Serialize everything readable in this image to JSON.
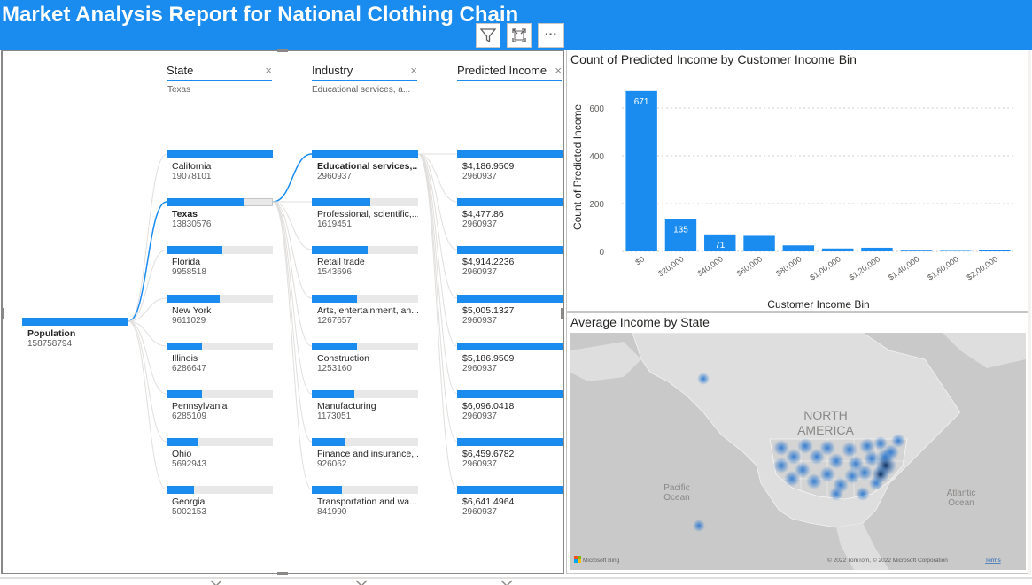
{
  "report": {
    "title": "Market Analysis Report for National Clothing Chain"
  },
  "toolbar": {
    "filter_icon": "filter-icon",
    "focus_icon": "focus-mode-icon",
    "more_icon": "more-options-icon",
    "more_label": "···"
  },
  "tree": {
    "root": {
      "label": "Population",
      "value": "158758794"
    },
    "levels": [
      {
        "header": "State",
        "filter": "Texas",
        "close": "×"
      },
      {
        "header": "Industry",
        "filter": "Educational services, a...",
        "close": "×"
      },
      {
        "header": "Predicted Income",
        "filter": "",
        "close": "×"
      }
    ],
    "state_nodes": [
      {
        "label": "California",
        "value": "19078101",
        "fill": 1.0
      },
      {
        "label": "Texas",
        "value": "13830576",
        "fill": 0.725,
        "selected": true
      },
      {
        "label": "Florida",
        "value": "9958518",
        "fill": 0.522
      },
      {
        "label": "New York",
        "value": "9611029",
        "fill": 0.504
      },
      {
        "label": "Illinois",
        "value": "6286647",
        "fill": 0.33
      },
      {
        "label": "Pennsylvania",
        "value": "6285109",
        "fill": 0.33
      },
      {
        "label": "Ohio",
        "value": "5692943",
        "fill": 0.298
      },
      {
        "label": "Georgia",
        "value": "5002153",
        "fill": 0.262
      }
    ],
    "industry_nodes": [
      {
        "label": "Educational services,...",
        "value": "2960937",
        "fill": 1.0,
        "selected": true
      },
      {
        "label": "Professional, scientific,...",
        "value": "1619451",
        "fill": 0.547
      },
      {
        "label": "Retail trade",
        "value": "1543696",
        "fill": 0.521
      },
      {
        "label": "Arts, entertainment, an...",
        "value": "1267657",
        "fill": 0.428
      },
      {
        "label": "Construction",
        "value": "1253160",
        "fill": 0.423
      },
      {
        "label": "Manufacturing",
        "value": "1173051",
        "fill": 0.396
      },
      {
        "label": "Finance and insurance,...",
        "value": "926062",
        "fill": 0.313
      },
      {
        "label": "Transportation and wa...",
        "value": "841990",
        "fill": 0.284
      }
    ],
    "income_nodes": [
      {
        "label": "$4,186.9509",
        "value": "2960937",
        "fill": 1.0
      },
      {
        "label": "$4,477.86",
        "value": "2960937",
        "fill": 1.0
      },
      {
        "label": "$4,914.2236",
        "value": "2960937",
        "fill": 1.0
      },
      {
        "label": "$5,005.1327",
        "value": "2960937",
        "fill": 1.0
      },
      {
        "label": "$5,186.9509",
        "value": "2960937",
        "fill": 1.0
      },
      {
        "label": "$6,096.0418",
        "value": "2960937",
        "fill": 1.0
      },
      {
        "label": "$6,459.6782",
        "value": "2960937",
        "fill": 1.0
      },
      {
        "label": "$6,641.4964",
        "value": "2960937",
        "fill": 1.0
      }
    ]
  },
  "chart_data": {
    "type": "bar",
    "title": "Count of Predicted Income by Customer Income Bin",
    "xlabel": "Customer Income Bin",
    "ylabel": "Count of Predicted Income",
    "categories": [
      "$0",
      "$20,000",
      "$40,000",
      "$60,000",
      "$80,000",
      "$1,00,000",
      "$1,20,000",
      "$1,40,000",
      "$1,60,000",
      "$2,00,000"
    ],
    "values": [
      671,
      135,
      71,
      65,
      25,
      12,
      15,
      3,
      2,
      5
    ],
    "data_labels": [
      "671",
      "135",
      "71",
      "",
      "",
      "",
      "",
      "",
      "",
      ""
    ],
    "ylim": [
      0,
      700
    ],
    "yticks": [
      0,
      200,
      400,
      600
    ],
    "grid": true,
    "color": "#1a8cf0"
  },
  "map": {
    "title": "Average Income by State",
    "continent_label_1": "NORTH",
    "continent_label_2": "AMERICA",
    "pacific_1": "Pacific",
    "pacific_2": "Ocean",
    "atlantic_1": "Atlantic",
    "atlantic_2": "Ocean",
    "bing": "Microsoft Bing",
    "copyright": "© 2022 TomTom, © 2022 Microsoft Corporation",
    "terms": "Terms"
  },
  "colors": {
    "accent": "#1a8cf0",
    "header_bg": "#1a8cf0",
    "map_bg": "#c9c9c9"
  }
}
